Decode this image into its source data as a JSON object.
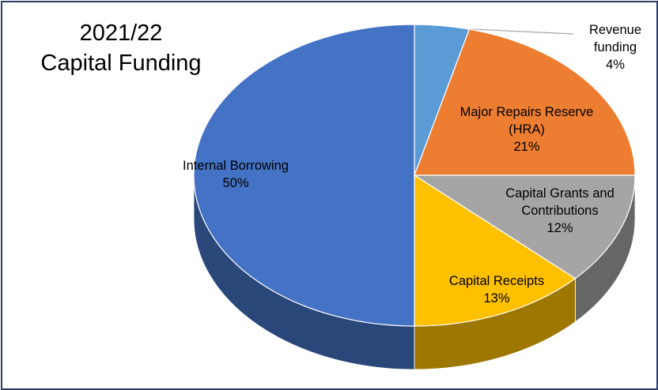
{
  "chart_data": {
    "type": "pie",
    "title": [
      "2021/22",
      "Capital Funding"
    ],
    "categories": [
      "Revenue funding",
      "Major Repairs Reserve (HRA)",
      "Capital Grants and Contributions",
      "Capital Receipts",
      "Internal Borrowing"
    ],
    "values": [
      4,
      21,
      12,
      13,
      50
    ],
    "value_labels": [
      "4%",
      "21%",
      "12%",
      "13%",
      "50%"
    ],
    "colors": [
      "#5b9bd5",
      "#ed7d31",
      "#a5a5a5",
      "#ffc000",
      "#4472c4"
    ]
  }
}
